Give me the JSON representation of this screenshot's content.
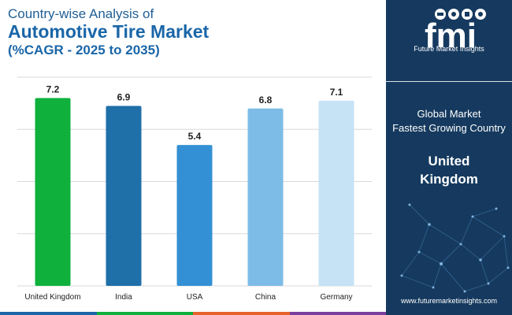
{
  "header": {
    "line1": "Country-wise Analysis of",
    "line2": "Automotive Tire Market",
    "line3": "(%CAGR - 2025 to 2035)"
  },
  "chart_data": {
    "type": "bar",
    "categories": [
      "United Kingdom",
      "India",
      "USA",
      "China",
      "Germany"
    ],
    "values": [
      7.2,
      6.9,
      5.4,
      6.8,
      7.1
    ],
    "value_labels": [
      "7.2",
      "6.9",
      "5.4",
      "6.8",
      "7.1"
    ],
    "bar_colors": [
      "#0fb03c",
      "#1f6fa8",
      "#3390d4",
      "#7dbce6",
      "#c6e2f5"
    ],
    "ylim": [
      0,
      8
    ],
    "grid": true,
    "title": "",
    "xlabel": "",
    "ylabel": ""
  },
  "panel": {
    "logo_text": "fmi",
    "logo_tagline": "Future Market Insights",
    "subtitle_line1": "Global Market",
    "subtitle_line2": "Fastest Growing Country",
    "country_line1": "United",
    "country_line2": "Kingdom",
    "url": "www.futuremarketinsights.com",
    "background_color": "#163a5f"
  },
  "bottom_bar_colors": [
    "#1a66a8",
    "#0fb03c",
    "#e8632b",
    "#7b3f9e"
  ]
}
